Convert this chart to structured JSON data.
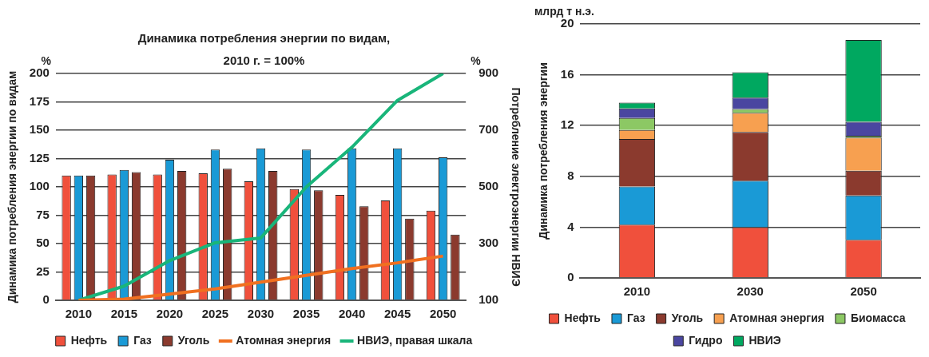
{
  "chart_data": [
    {
      "type": "bar",
      "title": "Динамика потребления энергии по видам,",
      "subtitle": "2010 г. = 100%",
      "ylabel": "Динамика потребления энергии по видам",
      "y2label": "Потребление электроэнергии НВИЭ",
      "annotations": [
        "%",
        "%"
      ],
      "categories": [
        "2010",
        "2015",
        "2020",
        "2025",
        "2030",
        "2035",
        "2040",
        "2045",
        "2050"
      ],
      "ylim": [
        0,
        200
      ],
      "yticks": [
        0,
        25,
        50,
        75,
        100,
        125,
        150,
        175,
        200
      ],
      "y2lim": [
        100,
        900
      ],
      "y2ticks": [
        100,
        300,
        500,
        700,
        900
      ],
      "grid": "y",
      "legend": "bottom",
      "marker": "none",
      "line_style": "solid",
      "series": [
        {
          "name": "Нефть",
          "color": "#f0503c",
          "values": [
            110,
            111,
            111,
            112,
            105,
            98,
            93,
            88,
            79
          ]
        },
        {
          "name": "Газ",
          "color": "#1a9ad6",
          "values": [
            110,
            115,
            124,
            133,
            134,
            133,
            134,
            134,
            126
          ]
        },
        {
          "name": "Уголь",
          "color": "#8b3a2e",
          "values": [
            110,
            113,
            114,
            116,
            114,
            97,
            83,
            72,
            58
          ]
        },
        {
          "name": "Атомная энергия",
          "type": "line",
          "color": "#f07020",
          "values": [
            0,
            1,
            5.5,
            10,
            16,
            22,
            28,
            33,
            39
          ]
        },
        {
          "name": "НВИЭ, правая шкала",
          "type": "line",
          "axis": "y2",
          "color": "#19b57a",
          "values": [
            100,
            150,
            240,
            303,
            320,
            500,
            640,
            805,
            900
          ]
        }
      ]
    },
    {
      "type": "bar",
      "ylabel": "Динамика потребления энергии",
      "annotations": [
        "млрд т н.э."
      ],
      "categories": [
        "2010",
        "2030",
        "2050"
      ],
      "ylim": [
        0,
        20
      ],
      "yticks": [
        0,
        4,
        8,
        12,
        16,
        20
      ],
      "grid": "y",
      "legend": "bottom",
      "stacked": true,
      "series": [
        {
          "name": "Нефть",
          "color": "#f0503c",
          "values": [
            4.2,
            4.0,
            3.0
          ]
        },
        {
          "name": "Газ",
          "color": "#1a9ad6",
          "values": [
            3.0,
            3.65,
            3.5
          ]
        },
        {
          "name": "Уголь",
          "color": "#8b3a2e",
          "values": [
            3.75,
            3.85,
            1.95
          ]
        },
        {
          "name": "Атомная энергия",
          "color": "#f7a050",
          "values": [
            0.7,
            1.5,
            2.6
          ]
        },
        {
          "name": "Биомасса",
          "color": "#8cc864",
          "values": [
            0.95,
            0.3,
            0.15
          ]
        },
        {
          "name": "Гидро",
          "color": "#4a46a0",
          "values": [
            0.75,
            0.9,
            1.1
          ]
        },
        {
          "name": "НВИЭ",
          "color": "#00a860",
          "values": [
            0.45,
            2.0,
            6.45
          ]
        }
      ]
    }
  ]
}
